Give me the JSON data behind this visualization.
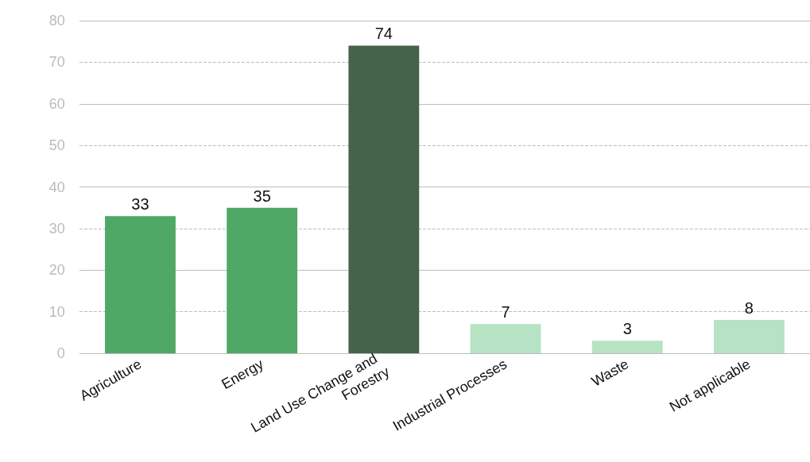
{
  "chart_data": {
    "type": "bar",
    "categories": [
      "Agriculture",
      "Energy",
      "Land Use Change and Forestry",
      "Industrial Processes",
      "Waste",
      "Not applicable"
    ],
    "values": [
      33,
      35,
      74,
      7,
      3,
      8
    ],
    "colors": [
      "#4fa865",
      "#4fa865",
      "#44634a",
      "#b5e3c3",
      "#b5e3c3",
      "#b5e3c3"
    ],
    "ylim": [
      0,
      80
    ],
    "yticks": [
      0,
      10,
      20,
      30,
      40,
      50,
      60,
      70,
      80
    ],
    "grid": true,
    "data_labels": true
  }
}
